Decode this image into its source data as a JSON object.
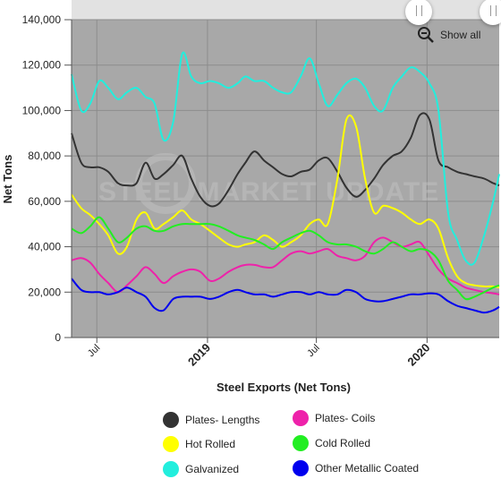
{
  "chart_data": {
    "type": "line",
    "xlabel": "Steel Exports (Net Tons)",
    "ylabel": "Net Tons",
    "ylim": [
      0,
      140000
    ],
    "yticks": [
      0,
      20000,
      40000,
      60000,
      80000,
      100000,
      120000,
      140000
    ],
    "ytick_labels": [
      "0",
      "20,000",
      "40,000",
      "60,000",
      "80,000",
      "100,000",
      "120,000",
      "140,000"
    ],
    "xlim": [
      "2018-05-20",
      "2020-04-30"
    ],
    "xticks": [
      {
        "date": "2018-07-01",
        "label": "Jul",
        "bold": false
      },
      {
        "date": "2019-01-01",
        "label": "2019",
        "bold": true
      },
      {
        "date": "2019-07-01",
        "label": "Jul",
        "bold": false
      },
      {
        "date": "2020-01-01",
        "label": "2020",
        "bold": true
      }
    ],
    "dates": [
      "2018-05-20",
      "2018-06-05",
      "2018-06-20",
      "2018-07-05",
      "2018-07-20",
      "2018-08-05",
      "2018-08-20",
      "2018-09-05",
      "2018-09-20",
      "2018-10-05",
      "2018-10-20",
      "2018-11-05",
      "2018-11-20",
      "2018-12-05",
      "2018-12-20",
      "2019-01-05",
      "2019-01-20",
      "2019-02-05",
      "2019-02-20",
      "2019-03-05",
      "2019-03-20",
      "2019-04-05",
      "2019-04-20",
      "2019-05-05",
      "2019-05-20",
      "2019-06-05",
      "2019-06-20",
      "2019-07-05",
      "2019-07-20",
      "2019-08-05",
      "2019-08-20",
      "2019-09-05",
      "2019-09-20",
      "2019-10-05",
      "2019-10-20",
      "2019-11-05",
      "2019-11-20",
      "2019-12-05",
      "2019-12-20",
      "2020-01-05",
      "2020-01-20",
      "2020-02-05",
      "2020-02-20",
      "2020-03-05",
      "2020-03-20",
      "2020-04-05",
      "2020-04-20",
      "2020-04-30"
    ],
    "series": [
      {
        "name": "Plates- Lengths",
        "color": "#333333",
        "values": [
          90000,
          77000,
          75000,
          75000,
          73000,
          68000,
          67000,
          68000,
          77000,
          70000,
          72000,
          76000,
          80000,
          70000,
          62000,
          58000,
          59000,
          65000,
          72000,
          77000,
          82000,
          78000,
          75000,
          72000,
          71000,
          73000,
          74000,
          78000,
          79000,
          73000,
          66000,
          62000,
          65000,
          70000,
          76000,
          80000,
          82000,
          88000,
          98000,
          96000,
          78000,
          75000,
          73000,
          72000,
          71000,
          70000,
          68000,
          67000
        ]
      },
      {
        "name": "Plates- Coils",
        "color": "#ee22aa",
        "values": [
          34000,
          35000,
          33000,
          28000,
          24000,
          20000,
          23000,
          27000,
          31000,
          28000,
          24000,
          27000,
          29000,
          30000,
          29000,
          25000,
          26000,
          29000,
          31000,
          32000,
          32000,
          31000,
          31000,
          34000,
          37000,
          38000,
          37000,
          38000,
          39000,
          36000,
          35000,
          34000,
          36000,
          42000,
          44000,
          42000,
          40000,
          41000,
          42000,
          36000,
          30000,
          26000,
          24000,
          22000,
          21000,
          20000,
          19500,
          19000
        ]
      },
      {
        "name": "Hot Rolled",
        "color": "#ffff00",
        "values": [
          63000,
          57000,
          54000,
          50000,
          45000,
          37000,
          40000,
          52000,
          55000,
          48000,
          50000,
          53000,
          56000,
          52000,
          50000,
          47000,
          44000,
          41000,
          40000,
          41000,
          42000,
          45000,
          43000,
          40000,
          42000,
          45000,
          50000,
          52000,
          50000,
          70000,
          96000,
          93000,
          70000,
          55000,
          58000,
          57000,
          55000,
          52000,
          50000,
          52000,
          48000,
          35000,
          27000,
          24000,
          23000,
          22500,
          22500,
          22000
        ]
      },
      {
        "name": "Cold Rolled",
        "color": "#22ee22",
        "values": [
          48000,
          46000,
          49000,
          53000,
          48000,
          42000,
          44000,
          48000,
          49000,
          47000,
          47000,
          49000,
          50000,
          50000,
          50000,
          50000,
          49000,
          47000,
          45000,
          44000,
          43000,
          41000,
          39000,
          42000,
          44000,
          46000,
          47000,
          45000,
          42000,
          41000,
          41000,
          40000,
          38000,
          37000,
          39000,
          42000,
          40000,
          38000,
          39000,
          38000,
          34000,
          25000,
          21000,
          17000,
          18000,
          20000,
          22000,
          23000
        ]
      },
      {
        "name": "Galvanized",
        "color": "#22eedd",
        "values": [
          116000,
          100000,
          103000,
          113000,
          110000,
          105000,
          108000,
          110000,
          106000,
          103000,
          87000,
          95000,
          125000,
          115000,
          112000,
          113000,
          112000,
          110000,
          112000,
          115000,
          113000,
          113000,
          110000,
          108000,
          108000,
          115000,
          123000,
          112000,
          102000,
          107000,
          112000,
          114000,
          110000,
          102000,
          100000,
          110000,
          115000,
          119000,
          117000,
          112000,
          100000,
          55000,
          43000,
          34000,
          33000,
          45000,
          60000,
          72000
        ]
      },
      {
        "name": "Other Metallic Coated",
        "color": "#0000ee",
        "values": [
          26000,
          21000,
          20000,
          20000,
          19000,
          20000,
          22000,
          20000,
          18000,
          13000,
          12000,
          17000,
          18000,
          18000,
          18000,
          17000,
          18000,
          20000,
          21000,
          20000,
          19000,
          19000,
          18000,
          19000,
          20000,
          20000,
          19000,
          20000,
          19000,
          19000,
          21000,
          20000,
          17000,
          16000,
          16000,
          17000,
          18000,
          19000,
          19000,
          19500,
          19000,
          16000,
          14000,
          13000,
          12000,
          11000,
          12000,
          13500
        ]
      }
    ]
  },
  "controls": {
    "show_all": "Show all"
  },
  "watermark": "STEEL MARKET UPDATE"
}
